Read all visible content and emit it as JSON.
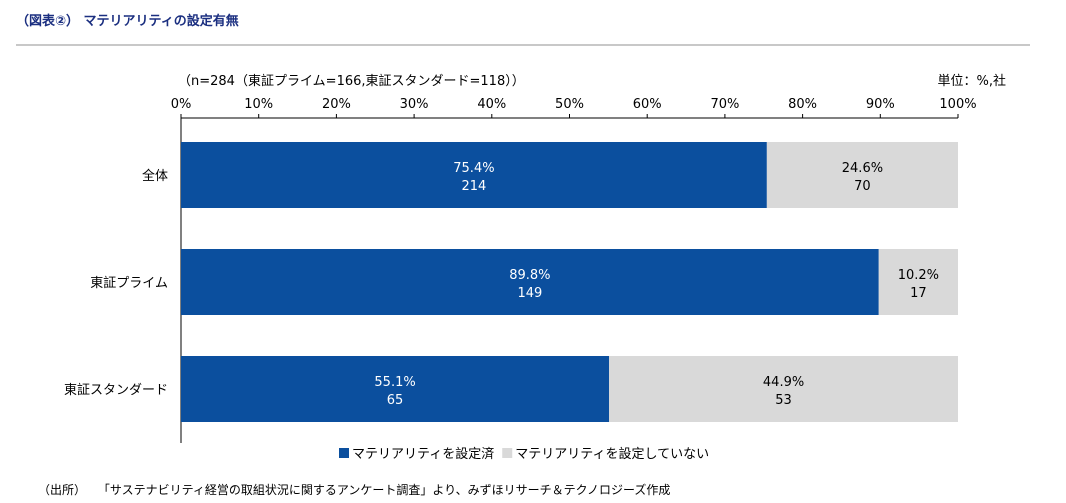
{
  "header": {
    "title": "（図表②） マテリアリティの設定有無"
  },
  "footer": {
    "source_label": "（出所）",
    "source_text": "「サステナビリティ経営の取組状況に関するアンケート調査」より、みずほリサーチ＆テクノロジーズ作成"
  },
  "chart_data": {
    "type": "bar",
    "orientation": "horizontal",
    "stacked": "percent",
    "note_left": "（n=284（東証プライム=166,東証スタンダード=118））",
    "note_right": "単位：%,社",
    "xlim": [
      0,
      100
    ],
    "xticks": [
      0,
      10,
      20,
      30,
      40,
      50,
      60,
      70,
      80,
      90,
      100
    ],
    "xtick_suffix": "%",
    "categories": [
      "全体",
      "東証プライム",
      "東証スタンダード"
    ],
    "series": [
      {
        "name": "マテリアリティを設定済",
        "color": "#0b4f9e",
        "text_color": "#ffffff",
        "values": [
          75.4,
          89.8,
          55.1
        ],
        "value_labels": [
          "75.4%",
          "89.8%",
          "55.1%"
        ],
        "counts": [
          "214",
          "149",
          "65"
        ]
      },
      {
        "name": "マテリアリティを設定していない",
        "color": "#d9d9d9",
        "text_color": "#000000",
        "values": [
          24.6,
          10.2,
          44.9
        ],
        "value_labels": [
          "24.6%",
          "10.2%",
          "44.9%"
        ],
        "counts": [
          "70",
          "17",
          "53"
        ]
      }
    ],
    "legend_position": "bottom-center"
  }
}
